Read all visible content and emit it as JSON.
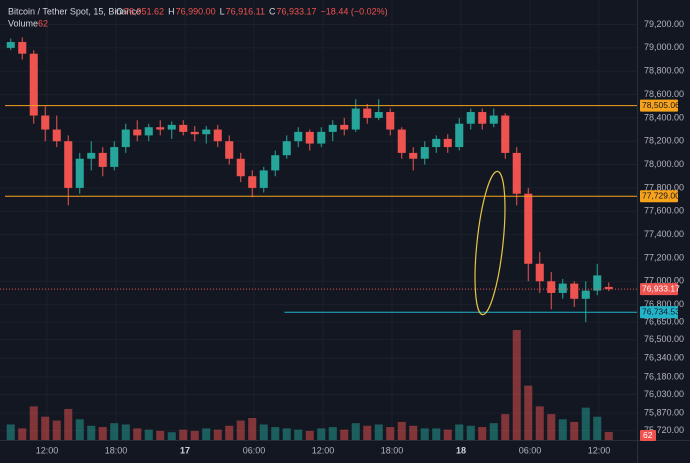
{
  "chart_data": {
    "type": "candlestick",
    "title": "Bitcoin / Tether Spot, 15, Binance",
    "ohlc_names": [
      "O",
      "H",
      "L",
      "C"
    ],
    "ohlc_values": [
      76951.62,
      76990.0,
      76916.11,
      76933.17
    ],
    "ohlc_value_labels": [
      "76,951.62",
      "76,990.00",
      "76,916.11",
      "76,933.17"
    ],
    "change": -18.44,
    "change_label": "−18.44 (−0.02%)",
    "volume_title": "Volume",
    "up_color": "#26a69a",
    "down_color": "#ef5350",
    "x": [
      0.5,
      1.5,
      2.5,
      3.5,
      4.5,
      5.5,
      6.5,
      7.5,
      8.5,
      9.5,
      10.5,
      11.5,
      12.5,
      13.5,
      14.5,
      15.5,
      16.5,
      17.5,
      18.5,
      19.5,
      20.5,
      21.5,
      22.5,
      23.5,
      24.5,
      25.5,
      26.5,
      27.5,
      28.5,
      29.5,
      30.5,
      31.5,
      32.5,
      33.5,
      34.5,
      35.5,
      36.5,
      37.5,
      38.5,
      39.5,
      40.5,
      41.5,
      42.5,
      43.5,
      44.5,
      45.5,
      46.5,
      47.5,
      48.5,
      49.5,
      50.5,
      51.5,
      52.5
    ],
    "candles": [
      [
        79000,
        79080,
        78980,
        79050
      ],
      [
        79050,
        79090,
        78900,
        78950
      ],
      [
        78950,
        78980,
        78350,
        78420
      ],
      [
        78420,
        78500,
        78200,
        78300
      ],
      [
        78300,
        78420,
        78150,
        78200
      ],
      [
        78200,
        78250,
        77650,
        77800
      ],
      [
        77800,
        78100,
        77750,
        78050
      ],
      [
        78050,
        78200,
        77950,
        78100
      ],
      [
        78100,
        78150,
        77900,
        77980
      ],
      [
        77980,
        78200,
        77950,
        78150
      ],
      [
        78150,
        78350,
        78100,
        78300
      ],
      [
        78300,
        78380,
        78200,
        78250
      ],
      [
        78250,
        78350,
        78200,
        78320
      ],
      [
        78320,
        78380,
        78250,
        78300
      ],
      [
        78300,
        78370,
        78220,
        78340
      ],
      [
        78340,
        78380,
        78250,
        78280
      ],
      [
        78280,
        78330,
        78200,
        78260
      ],
      [
        78260,
        78330,
        78180,
        78300
      ],
      [
        78300,
        78340,
        78150,
        78200
      ],
      [
        78200,
        78250,
        78000,
        78050
      ],
      [
        78050,
        78100,
        77850,
        77900
      ],
      [
        77900,
        77950,
        77720,
        77800
      ],
      [
        77800,
        77980,
        77760,
        77950
      ],
      [
        77950,
        78120,
        77900,
        78080
      ],
      [
        78080,
        78250,
        78050,
        78200
      ],
      [
        78200,
        78320,
        78150,
        78280
      ],
      [
        78280,
        78300,
        78120,
        78180
      ],
      [
        78180,
        78320,
        78150,
        78280
      ],
      [
        78280,
        78380,
        78200,
        78340
      ],
      [
        78340,
        78400,
        78250,
        78300
      ],
      [
        78300,
        78560,
        78280,
        78480
      ],
      [
        78480,
        78520,
        78350,
        78400
      ],
      [
        78400,
        78560,
        78380,
        78450
      ],
      [
        78450,
        78480,
        78250,
        78300
      ],
      [
        78300,
        78320,
        78050,
        78100
      ],
      [
        78100,
        78150,
        77950,
        78050
      ],
      [
        78050,
        78200,
        78000,
        78150
      ],
      [
        78150,
        78250,
        78100,
        78220
      ],
      [
        78220,
        78260,
        78100,
        78150
      ],
      [
        78150,
        78400,
        78120,
        78350
      ],
      [
        78350,
        78480,
        78300,
        78450
      ],
      [
        78450,
        78480,
        78300,
        78350
      ],
      [
        78350,
        78480,
        78320,
        78420
      ],
      [
        78420,
        78440,
        78050,
        78100
      ],
      [
        78100,
        78150,
        77650,
        77750
      ],
      [
        77750,
        77800,
        77000,
        77150
      ],
      [
        77150,
        77250,
        76900,
        77000
      ],
      [
        77000,
        77080,
        76760,
        76900
      ],
      [
        76900,
        77020,
        76850,
        76980
      ],
      [
        76980,
        77000,
        76780,
        76850
      ],
      [
        76850,
        77000,
        76650,
        76920
      ],
      [
        76920,
        77150,
        76880,
        77050
      ],
      [
        76951.62,
        76990.0,
        76916.11,
        76933.17
      ]
    ],
    "volumes": [
      120,
      90,
      260,
      180,
      150,
      240,
      160,
      110,
      100,
      130,
      120,
      90,
      80,
      70,
      60,
      80,
      70,
      90,
      80,
      110,
      150,
      170,
      120,
      100,
      90,
      80,
      70,
      90,
      100,
      80,
      130,
      110,
      120,
      100,
      140,
      110,
      90,
      90,
      80,
      120,
      110,
      100,
      130,
      200,
      850,
      420,
      260,
      200,
      160,
      140,
      250,
      180,
      62
    ],
    "xlim": [
      0,
      55
    ],
    "xticks": [
      {
        "value": 3.65,
        "label": "12:00"
      },
      {
        "value": 9.65,
        "label": "18:00"
      },
      {
        "value": 15.65,
        "label": "17"
      },
      {
        "value": 21.65,
        "label": "06:00"
      },
      {
        "value": 27.65,
        "label": "12:00"
      },
      {
        "value": 33.65,
        "label": "18:00"
      },
      {
        "value": 39.65,
        "label": "18"
      },
      {
        "value": 45.65,
        "label": "06:00"
      },
      {
        "value": 51.65,
        "label": "12:00"
      }
    ],
    "ylim": [
      75640,
      79410
    ],
    "yticks": [
      {
        "value": 79200,
        "label": "79,200.00"
      },
      {
        "value": 79000,
        "label": "79,000.00"
      },
      {
        "value": 78800,
        "label": "78,800.00"
      },
      {
        "value": 78600,
        "label": "78,600.00"
      },
      {
        "value": 78400,
        "label": "78,400.00"
      },
      {
        "value": 78200,
        "label": "78,200.00"
      },
      {
        "value": 78000,
        "label": "78,000.00"
      },
      {
        "value": 77800,
        "label": "77,800.00"
      },
      {
        "value": 77600,
        "label": "77,600.00"
      },
      {
        "value": 77400,
        "label": "77,400.00"
      },
      {
        "value": 77200,
        "label": "77,200.00"
      },
      {
        "value": 77000,
        "label": "77,000.00"
      },
      {
        "value": 76800,
        "label": "76,800.00"
      },
      {
        "value": 76650,
        "label": "76,650.00"
      },
      {
        "value": 76500,
        "label": "76,500.00"
      },
      {
        "value": 76340,
        "label": "76,340.00"
      },
      {
        "value": 76180,
        "label": "76,180.00"
      },
      {
        "value": 76030,
        "label": "76,030.00"
      },
      {
        "value": 75870,
        "label": "75,870.00"
      },
      {
        "value": 75720,
        "label": "75,720.00"
      }
    ],
    "price_lines": [
      {
        "value": 78505.06,
        "label": "78,505.06",
        "color": "#f7a21b",
        "x_start": 0
      },
      {
        "value": 77729.0,
        "label": "77,729.00",
        "color": "#f7a21b",
        "x_start": 0
      },
      {
        "value": 76734.53,
        "label": "76,734.53",
        "color": "#22b4c9",
        "x_start": 24.3
      }
    ],
    "grid": true
  }
}
